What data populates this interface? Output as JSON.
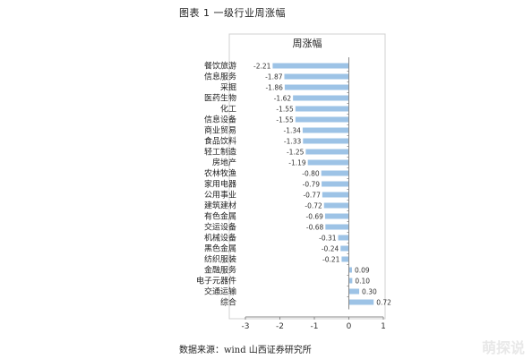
{
  "figure_title": "图表 1 一级行业周涨幅",
  "caption": "数据来源：wind 山西证券研究所",
  "watermark": "萌探说",
  "bar_color": "#9dc3e6",
  "chart_data": {
    "type": "bar",
    "orientation": "horizontal",
    "title": "周涨幅",
    "categories": [
      "餐饮旅游",
      "信息服务",
      "采掘",
      "医药生物",
      "化工",
      "信息设备",
      "商业贸易",
      "食品饮料",
      "轻工制造",
      "房地产",
      "农林牧渔",
      "家用电器",
      "公用事业",
      "建筑建材",
      "有色金属",
      "交运设备",
      "机械设备",
      "黑色金属",
      "纺织服装",
      "金融服务",
      "电子元器件",
      "交通运输",
      "综合"
    ],
    "values": [
      -2.21,
      -1.87,
      -1.86,
      -1.62,
      -1.55,
      -1.55,
      -1.34,
      -1.33,
      -1.25,
      -1.19,
      -0.8,
      -0.79,
      -0.77,
      -0.72,
      -0.69,
      -0.68,
      -0.31,
      -0.24,
      -0.21,
      0.09,
      0.1,
      0.3,
      0.72
    ],
    "value_labels": [
      "-2.21",
      "-1.87",
      "-1.86",
      "-1.62",
      "-1.55",
      "-1.55",
      "-1.34",
      "-1.33",
      "-1.25",
      "-1.19",
      "-0.80",
      "-0.79",
      "-0.77",
      "-0.72",
      "-0.69",
      "-0.68",
      "-0.31",
      "-0.24",
      "-0.21",
      "0.09",
      "0.10",
      "0.30",
      "0.72"
    ],
    "xlim": [
      -3,
      1
    ],
    "ticks": [
      -3,
      -2,
      -1,
      0,
      1
    ],
    "tick_labels": [
      "-3",
      "-2",
      "-1",
      "0",
      "1"
    ],
    "grid": false,
    "legend": "none"
  }
}
